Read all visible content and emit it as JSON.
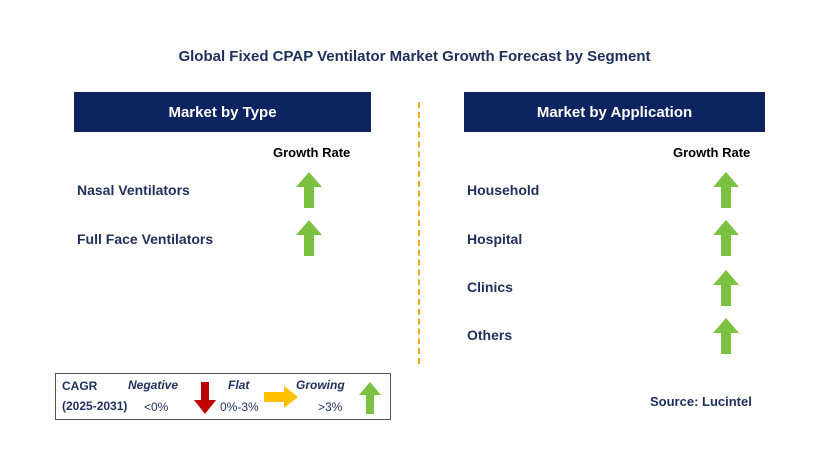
{
  "title": "Global Fixed CPAP Ventilator Market Growth Forecast by Segment",
  "colors": {
    "header_bg": "#0d2461",
    "up_arrow": "#7dc142",
    "down_arrow": "#c00000",
    "flat_arrow": "#ffc000",
    "divider": "#f0a81e"
  },
  "left_panel": {
    "header": "Market by Type",
    "growth_label": "Growth Rate",
    "rows": [
      {
        "label": "Nasal Ventilators",
        "trend": "up-arrow"
      },
      {
        "label": "Full Face Ventilators",
        "trend": "up-arrow"
      }
    ]
  },
  "right_panel": {
    "header": "Market by Application",
    "growth_label": "Growth Rate",
    "rows": [
      {
        "label": "Household",
        "trend": "up-arrow"
      },
      {
        "label": "Hospital",
        "trend": "up-arrow"
      },
      {
        "label": "Clinics",
        "trend": "up-arrow"
      },
      {
        "label": "Others",
        "trend": "up-arrow"
      }
    ]
  },
  "legend": {
    "cagr": "CAGR",
    "period": "(2025-2031)",
    "negative": {
      "label": "Negative",
      "range": "<0%"
    },
    "flat": {
      "label": "Flat",
      "range": "0%-3%"
    },
    "growing": {
      "label": "Growing",
      "range": ">3%"
    }
  },
  "source": "Source: Lucintel"
}
